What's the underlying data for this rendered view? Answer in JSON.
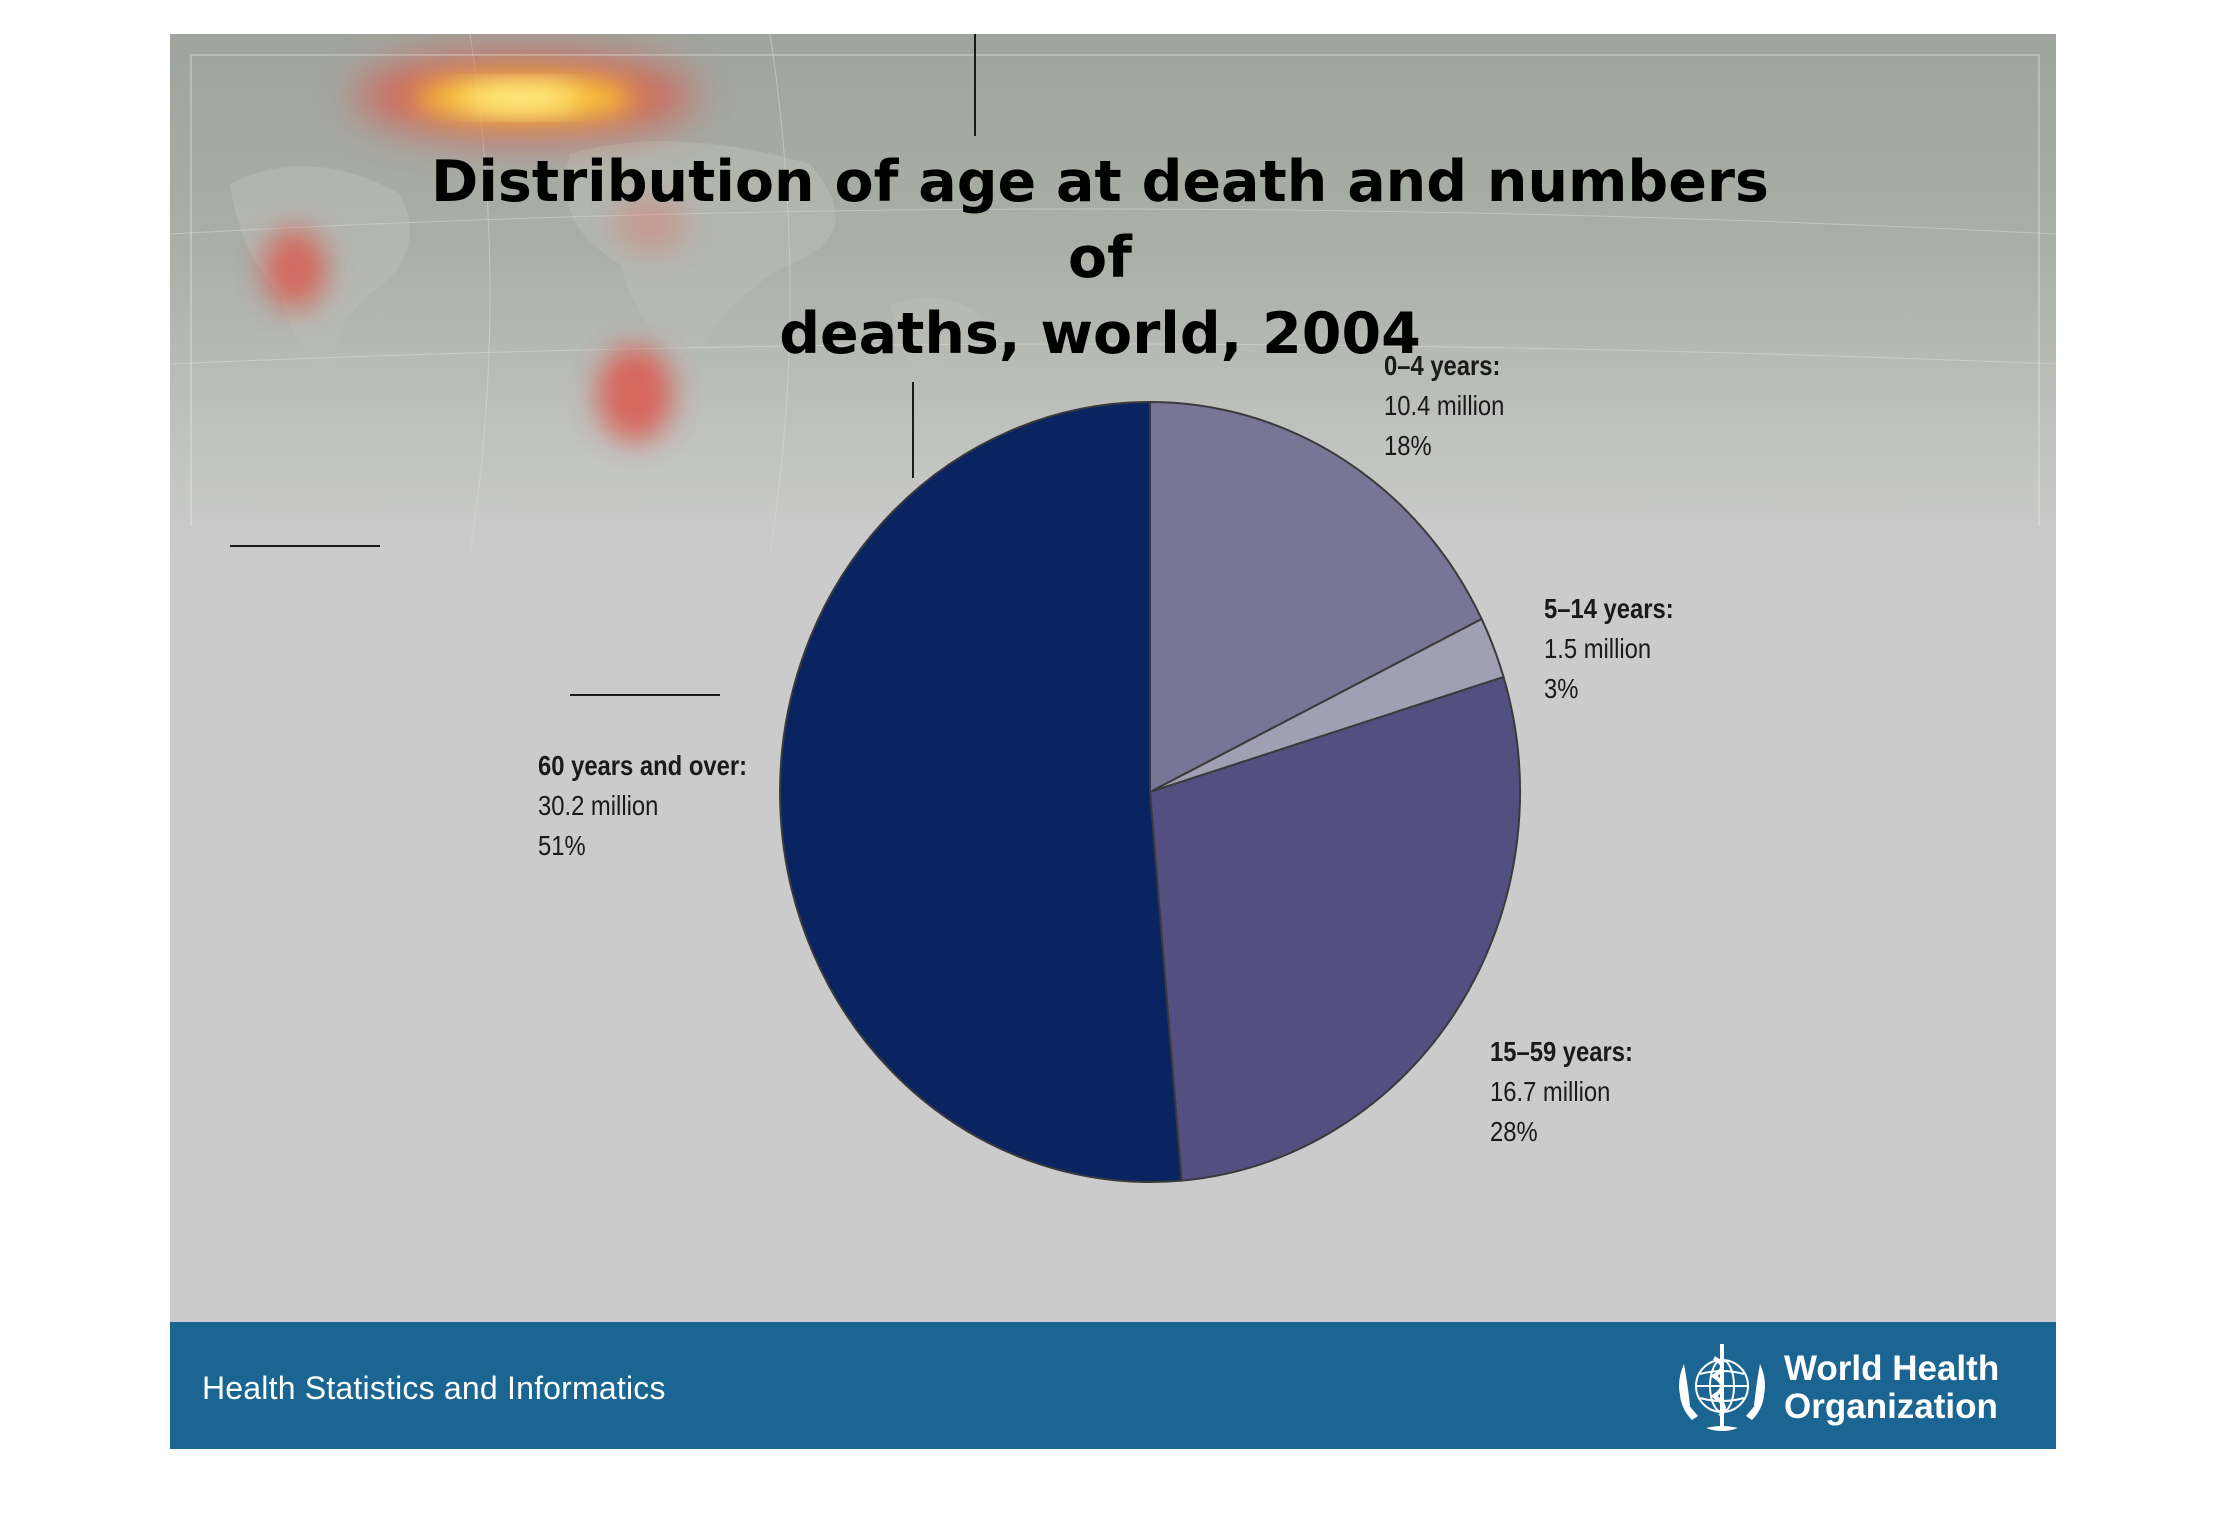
{
  "chart_data": {
    "type": "pie",
    "title": "Distribution of age at death and numbers of deaths, world, 2004",
    "slices": [
      {
        "name": "0–4 years:",
        "value": 10.4,
        "value_text": "10.4 million",
        "percent": 18,
        "percent_text": "18%",
        "color": "#787597"
      },
      {
        "name": "5–14 years:",
        "value": 1.5,
        "value_text": "1.5 million",
        "percent": 3,
        "percent_text": "3%",
        "color": "#a09fb4"
      },
      {
        "name": "15–59 years:",
        "value": 16.7,
        "value_text": "16.7 million",
        "percent": 28,
        "percent_text": "28%",
        "color": "#535081"
      },
      {
        "name": "60 years and over:",
        "value": 30.2,
        "value_text": "30.2 million",
        "percent": 51,
        "percent_text": "51%",
        "color": "#0a2462"
      }
    ]
  },
  "title": {
    "line1": "Distribution of age at death and numbers of",
    "line2": "deaths, world, 2004"
  },
  "footer": {
    "text": "Health Statistics and Informatics",
    "logo_line1": "World Health",
    "logo_line2": "Organization",
    "background": "#1a6592"
  }
}
